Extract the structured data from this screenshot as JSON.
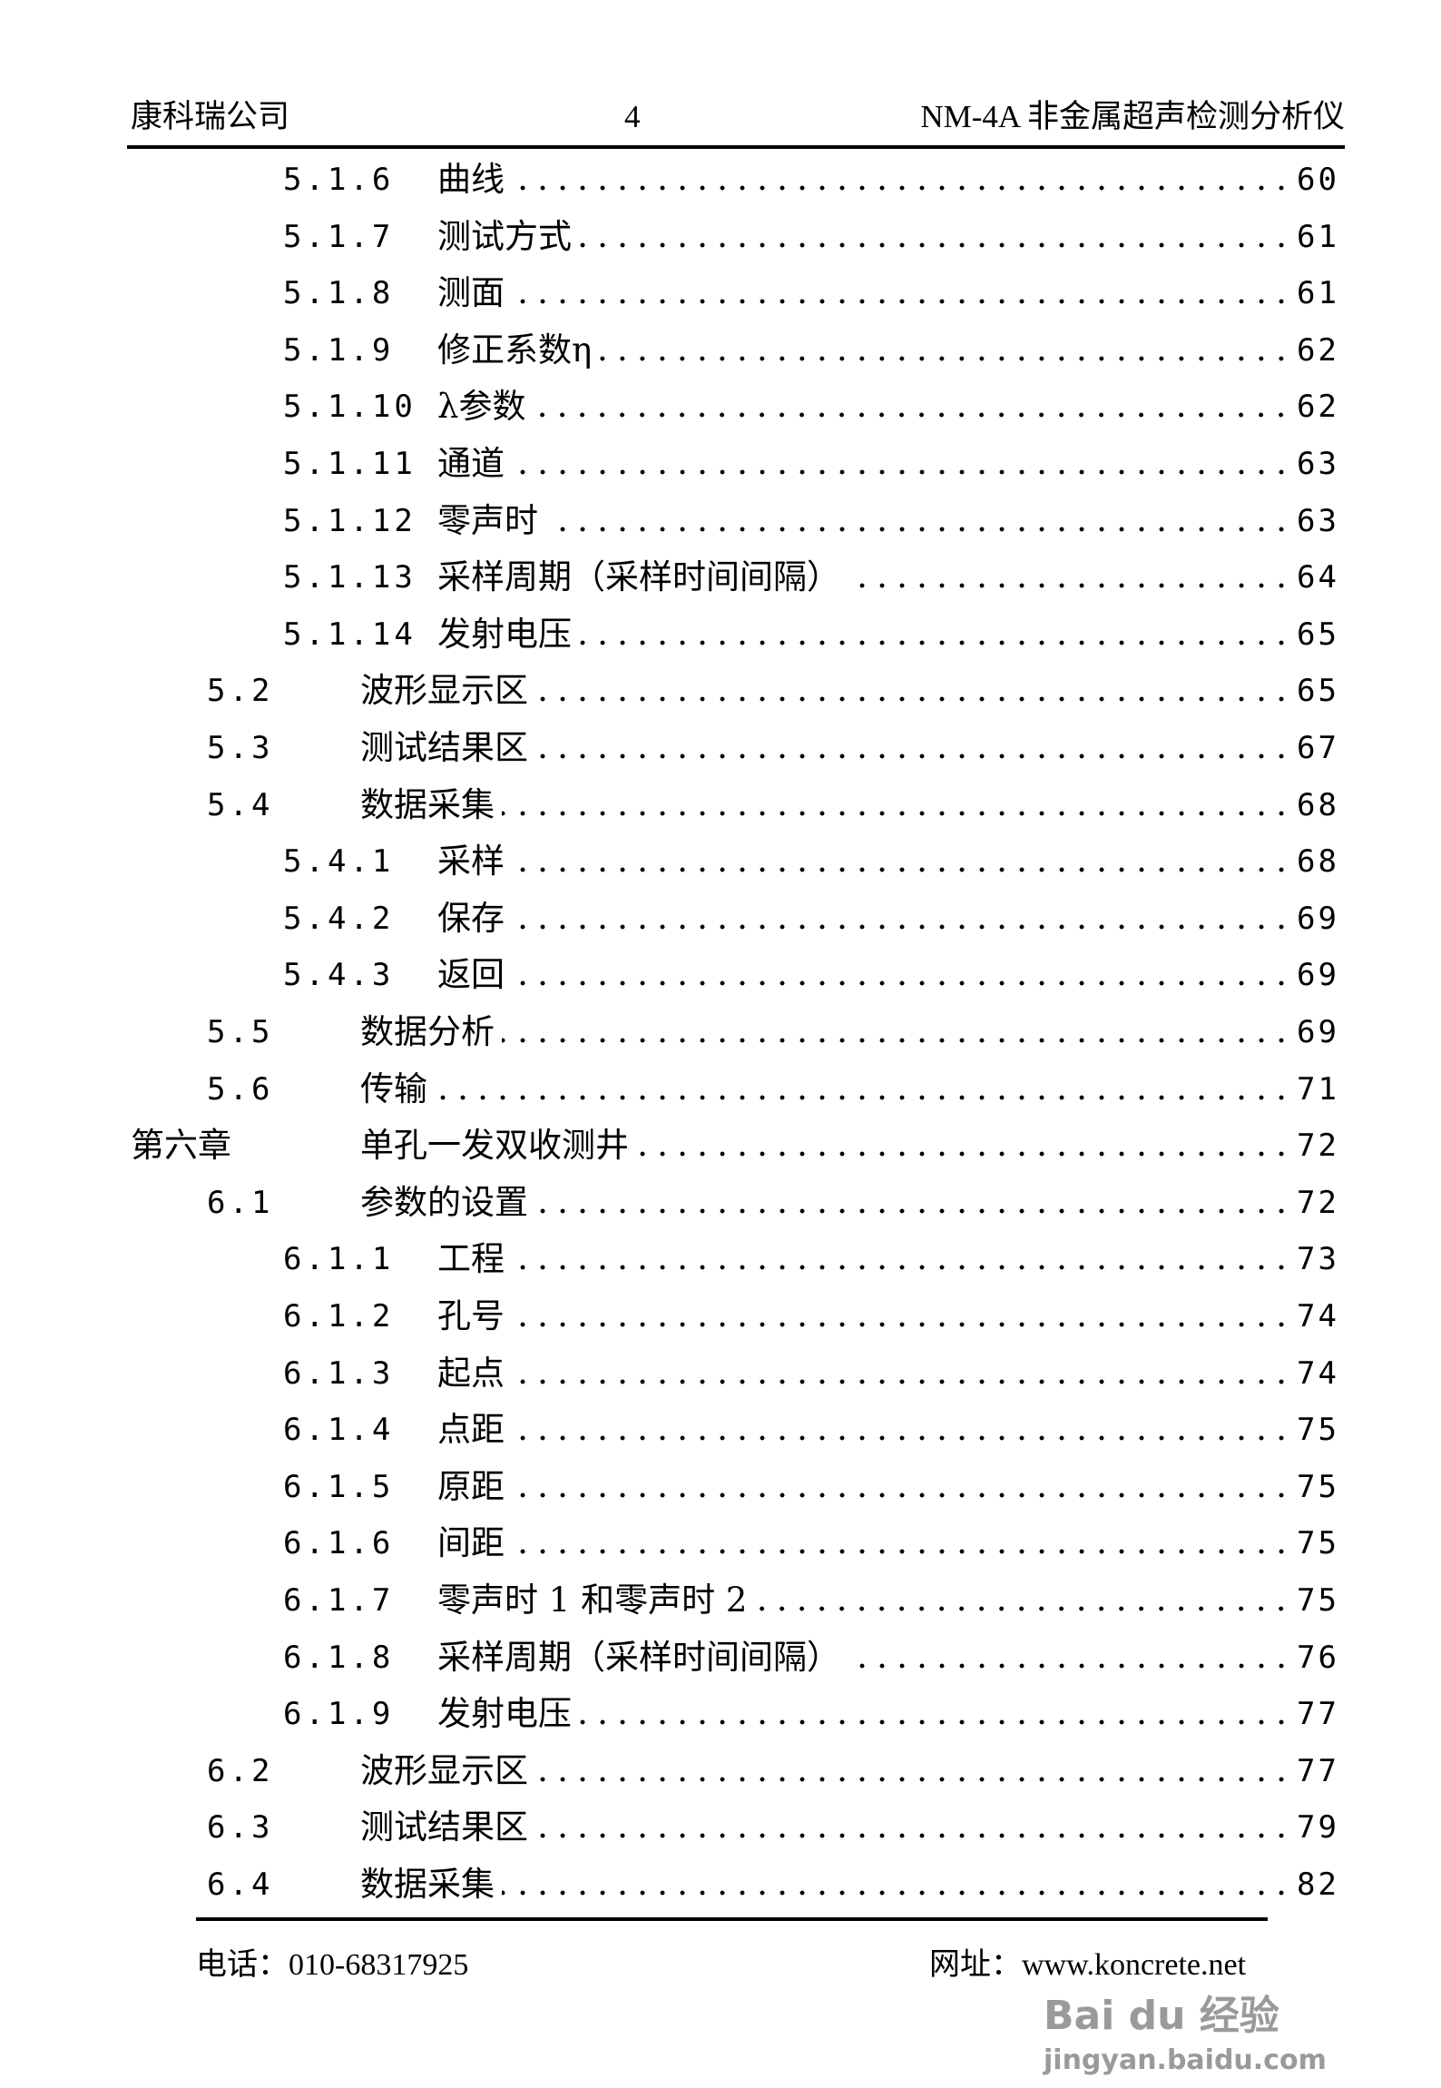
{
  "header": {
    "company": "康科瑞公司",
    "page_number": "4",
    "product": "NM-4A 非金属超声检测分析仪"
  },
  "toc": [
    {
      "level": 3,
      "num": "5.1.6",
      "title": "曲线",
      "page": "60"
    },
    {
      "level": 3,
      "num": "5.1.7",
      "title": "测试方式",
      "page": "61"
    },
    {
      "level": 3,
      "num": "5.1.8",
      "title": "测面",
      "page": "61"
    },
    {
      "level": 3,
      "num": "5.1.9",
      "title": "修正系数η",
      "page": "62"
    },
    {
      "level": 3,
      "num": "5.1.10",
      "title": "λ参数",
      "page": "62"
    },
    {
      "level": 3,
      "num": "5.1.11",
      "title": "通道",
      "page": "63"
    },
    {
      "level": 3,
      "num": "5.1.12",
      "title": "零声时",
      "page": "63"
    },
    {
      "level": 3,
      "num": "5.1.13",
      "title": "采样周期（采样时间间隔）",
      "page": "64"
    },
    {
      "level": 3,
      "num": "5.1.14",
      "title": "发射电压",
      "page": "65"
    },
    {
      "level": 2,
      "num": "5.2",
      "title": "波形显示区",
      "page": "65"
    },
    {
      "level": 2,
      "num": "5.3",
      "title": "测试结果区",
      "page": "67"
    },
    {
      "level": 2,
      "num": "5.4",
      "title": "数据采集",
      "page": "68"
    },
    {
      "level": 3,
      "num": "5.4.1",
      "title": "采样",
      "page": "68"
    },
    {
      "level": 3,
      "num": "5.4.2",
      "title": "保存",
      "page": "69"
    },
    {
      "level": 3,
      "num": "5.4.3",
      "title": "返回",
      "page": "69"
    },
    {
      "level": 2,
      "num": "5.5",
      "title": "数据分析",
      "page": "69"
    },
    {
      "level": 2,
      "num": "5.6",
      "title": "传输",
      "page": "71"
    },
    {
      "level": 1,
      "num": "第六章",
      "title": "单孔一发双收测井",
      "page": "72"
    },
    {
      "level": 2,
      "num": "6.1",
      "title": "参数的设置",
      "page": "72"
    },
    {
      "level": 3,
      "num": "6.1.1",
      "title": "工程",
      "page": "73"
    },
    {
      "level": 3,
      "num": "6.1.2",
      "title": "孔号",
      "page": "74"
    },
    {
      "level": 3,
      "num": "6.1.3",
      "title": "起点",
      "page": "74"
    },
    {
      "level": 3,
      "num": "6.1.4",
      "title": "点距",
      "page": "75"
    },
    {
      "level": 3,
      "num": "6.1.5",
      "title": "原距",
      "page": "75"
    },
    {
      "level": 3,
      "num": "6.1.6",
      "title": "间距",
      "page": "75"
    },
    {
      "level": 3,
      "num": "6.1.7",
      "title": "零声时 1 和零声时 2",
      "page": "75"
    },
    {
      "level": 3,
      "num": "6.1.8",
      "title": "采样周期（采样时间间隔）",
      "page": "76"
    },
    {
      "level": 3,
      "num": "6.1.9",
      "title": "发射电压",
      "page": "77"
    },
    {
      "level": 2,
      "num": "6.2",
      "title": "波形显示区",
      "page": "77"
    },
    {
      "level": 2,
      "num": "6.3",
      "title": "测试结果区",
      "page": "79"
    },
    {
      "level": 2,
      "num": "6.4",
      "title": "数据采集",
      "page": "82"
    }
  ],
  "footer": {
    "phone": "电话：010-68317925",
    "website": "网址：www.koncrete.net"
  },
  "watermark": {
    "brand": "Bai du 经验",
    "url": "jingyan.baidu.com"
  }
}
